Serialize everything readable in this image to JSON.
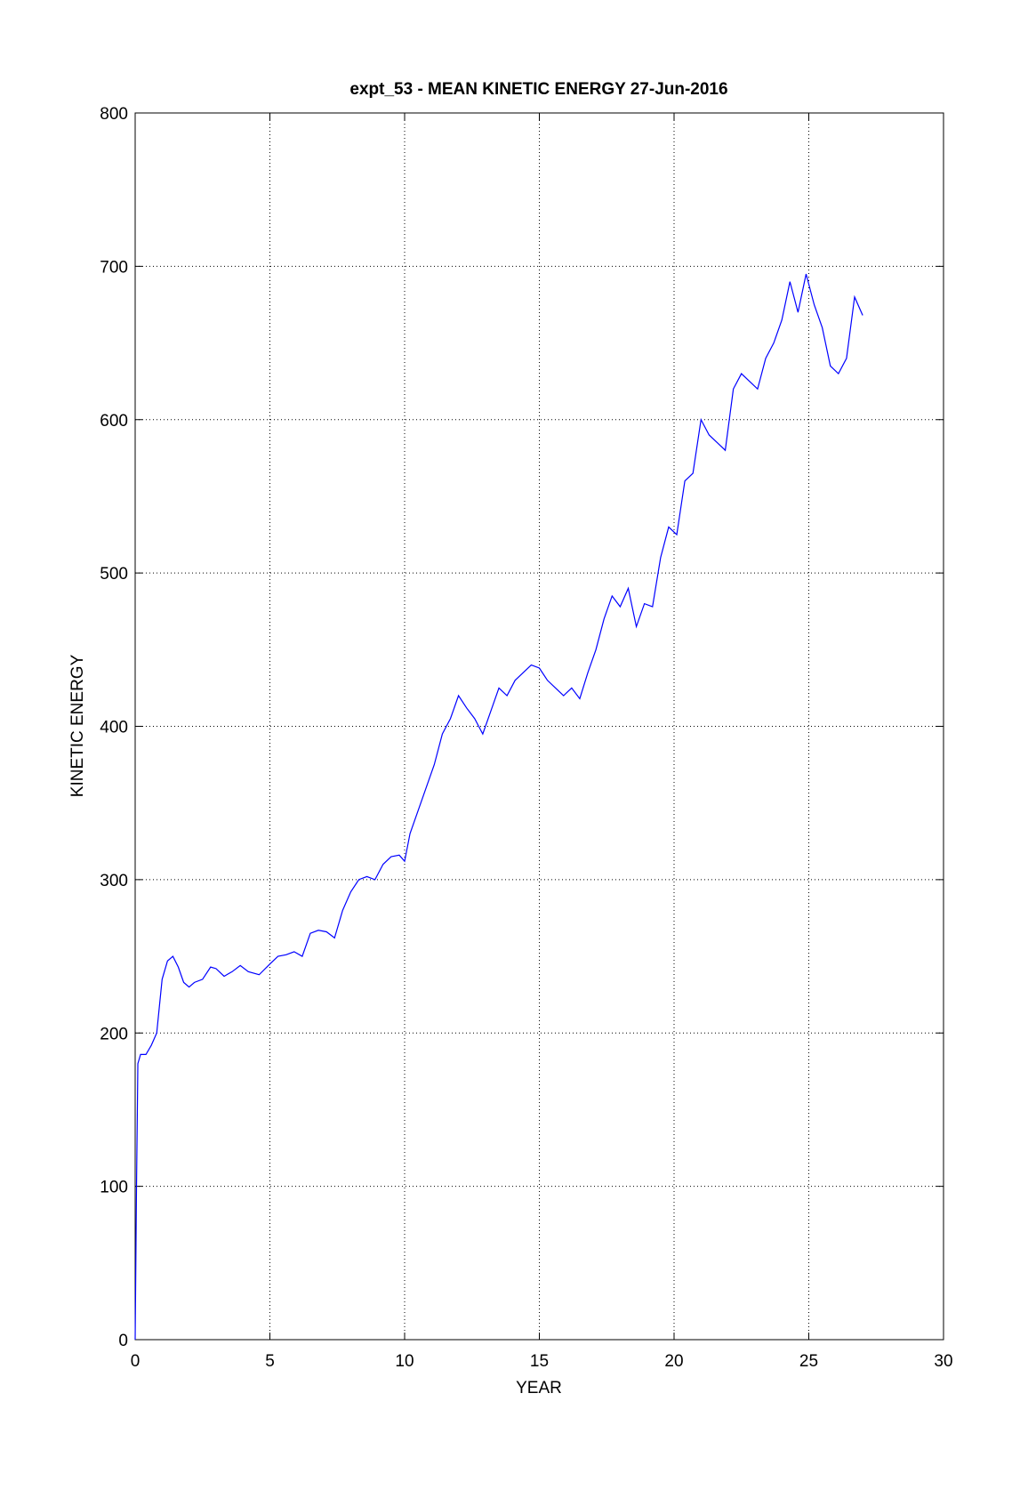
{
  "chart_data": {
    "type": "line",
    "title": "expt_53 - MEAN KINETIC ENERGY 27-Jun-2016",
    "x_label": "YEAR",
    "y_label": "KINETIC ENERGY",
    "x": [
      0,
      0.05,
      0.1,
      0.2,
      0.4,
      0.6,
      0.8,
      1.0,
      1.2,
      1.4,
      1.6,
      1.8,
      2.0,
      2.2,
      2.5,
      2.8,
      3.0,
      3.3,
      3.6,
      3.9,
      4.2,
      4.6,
      5.0,
      5.3,
      5.6,
      5.9,
      6.2,
      6.5,
      6.8,
      7.1,
      7.4,
      7.7,
      8.0,
      8.3,
      8.6,
      8.9,
      9.2,
      9.5,
      9.8,
      10.0,
      10.2,
      10.5,
      10.8,
      11.1,
      11.4,
      11.7,
      12.0,
      12.3,
      12.6,
      12.9,
      13.2,
      13.5,
      13.8,
      14.1,
      14.4,
      14.7,
      15.0,
      15.3,
      15.6,
      15.9,
      16.2,
      16.5,
      16.8,
      17.1,
      17.4,
      17.7,
      18.0,
      18.3,
      18.6,
      18.9,
      19.2,
      19.5,
      19.8,
      20.1,
      20.4,
      20.7,
      21.0,
      21.3,
      21.6,
      21.9,
      22.2,
      22.5,
      22.8,
      23.1,
      23.4,
      23.7,
      24.0,
      24.3,
      24.6,
      24.9,
      25.2,
      25.5,
      25.8,
      26.1,
      26.4,
      26.7,
      27.0
    ],
    "series": [
      {
        "name": "KINETIC ENERGY",
        "color": "#0000ff",
        "values": [
          0,
          100,
          180,
          186,
          186,
          192,
          200,
          235,
          247,
          250,
          243,
          233,
          230,
          233,
          235,
          243,
          242,
          237,
          240,
          244,
          240,
          238,
          245,
          250,
          251,
          253,
          250,
          265,
          267,
          266,
          262,
          280,
          292,
          300,
          302,
          300,
          310,
          315,
          316,
          312,
          330,
          345,
          360,
          375,
          395,
          405,
          420,
          412,
          405,
          395,
          410,
          425,
          420,
          430,
          435,
          440,
          438,
          430,
          425,
          420,
          425,
          418,
          435,
          450,
          470,
          485,
          478,
          490,
          465,
          480,
          478,
          510,
          530,
          525,
          560,
          565,
          600,
          590,
          585,
          580,
          620,
          630,
          625,
          620,
          640,
          650,
          665,
          690,
          670,
          695,
          675,
          660,
          635,
          630,
          640,
          680,
          668
        ]
      }
    ],
    "xlim": [
      0,
      30
    ],
    "xticks": [
      0,
      5,
      10,
      15,
      20,
      25,
      30
    ],
    "ylim": [
      0,
      800
    ],
    "yticks": [
      0,
      100,
      200,
      300,
      400,
      500,
      600,
      700,
      800
    ],
    "grid": true
  }
}
